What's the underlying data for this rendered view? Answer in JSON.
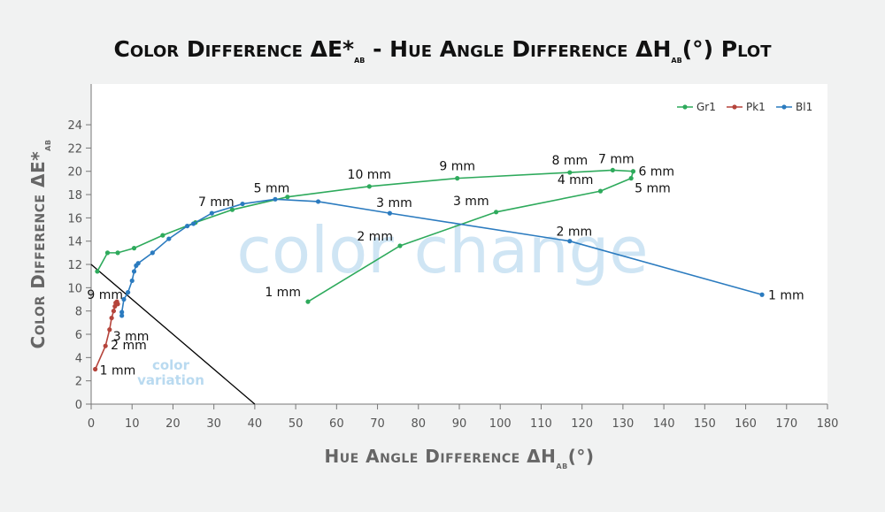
{
  "chart_data": {
    "type": "line",
    "title": [
      "Color Difference ΔE*",
      "ab",
      " - Hue Angle Difference ΔH",
      "ab",
      "(°) Plot"
    ],
    "x_label": [
      "Hue Angle Difference ΔH",
      "ab",
      "(°)"
    ],
    "y_label": [
      "Color Difference ΔE*",
      "ab"
    ],
    "xlim": [
      0,
      180
    ],
    "ylim": [
      0,
      27.5
    ],
    "xticks": [
      0,
      10,
      20,
      30,
      40,
      50,
      60,
      70,
      80,
      90,
      100,
      110,
      120,
      130,
      140,
      150,
      160,
      170,
      180
    ],
    "yticks": [
      0,
      2,
      4,
      6,
      8,
      10,
      12,
      14,
      16,
      18,
      20,
      22,
      24
    ],
    "grid": false,
    "legend": "upper right",
    "annotations": [
      "color change",
      "color",
      "variation"
    ],
    "reference_line": {
      "x": [
        0,
        40
      ],
      "y": [
        12,
        0
      ],
      "color": "#000000"
    },
    "series": [
      {
        "name": "Gr1",
        "color": "#2eaa5c",
        "x": [
          53,
          75.5,
          99,
          124.5,
          132,
          132.5,
          127.5,
          117,
          89.5,
          68,
          48,
          34.5,
          25.5,
          17.5,
          10.5,
          6.5,
          4,
          1.5
        ],
        "values": [
          8.8,
          13.6,
          16.5,
          18.3,
          19.4,
          20.0,
          20.1,
          19.9,
          19.4,
          18.7,
          17.8,
          16.7,
          15.6,
          14.5,
          13.4,
          13.0,
          13.0,
          11.4
        ],
        "point_labels": [
          "1 mm",
          "2 mm",
          "3 mm",
          "4 mm",
          "5 mm",
          "6 mm",
          "7 mm",
          "8 mm",
          "9 mm",
          "10 mm",
          null,
          null,
          null,
          null,
          null,
          null,
          null,
          null
        ]
      },
      {
        "name": "Pk1",
        "color": "#b5443b",
        "x": [
          1,
          3.5,
          4.5,
          5,
          5.5,
          5.8,
          6,
          6.3,
          6.5
        ],
        "values": [
          3,
          5,
          6.4,
          7.4,
          8,
          8.4,
          8.7,
          8.8,
          8.6
        ],
        "point_labels": [
          "1 mm",
          "2 mm",
          "3 mm",
          null,
          null,
          null,
          null,
          null,
          "9 mm"
        ]
      },
      {
        "name": "Bl1",
        "color": "#2b7bbf",
        "x": [
          164,
          117,
          73,
          55.5,
          45,
          37,
          29.5,
          25,
          23.5,
          19,
          15,
          11.5,
          11,
          10.5,
          10,
          9,
          8,
          7.5,
          7.5
        ],
        "values": [
          9.4,
          14.0,
          16.4,
          17.4,
          17.6,
          17.2,
          16.4,
          15.5,
          15.3,
          14.2,
          13.0,
          12.1,
          11.9,
          11.4,
          10.6,
          9.6,
          9.0,
          7.9,
          7.6
        ],
        "point_labels": [
          "1 mm",
          "2 mm",
          "3 mm",
          null,
          "5 mm",
          null,
          "7 mm",
          null,
          null,
          null,
          null,
          null,
          null,
          null,
          null,
          null,
          null,
          null,
          null
        ]
      }
    ]
  }
}
